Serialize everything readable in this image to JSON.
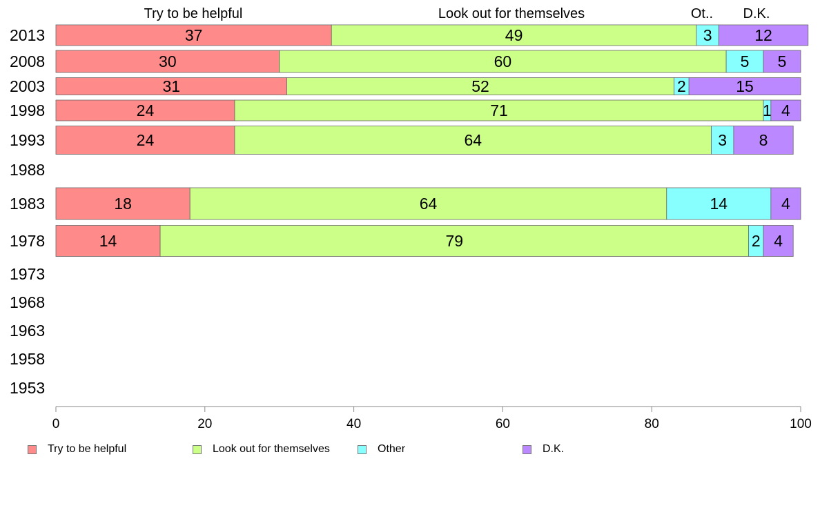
{
  "chart_data": {
    "type": "bar",
    "orientation": "horizontal",
    "stacked": true,
    "categories": [
      "2013",
      "2008",
      "2003",
      "1998",
      "1993",
      "1988",
      "1983",
      "1978",
      "1973",
      "1968",
      "1963",
      "1958",
      "1953"
    ],
    "series": [
      {
        "name": "Try to be helpful",
        "color": "#ff8a8a",
        "values": [
          37,
          30,
          31,
          24,
          24,
          null,
          18,
          14,
          null,
          null,
          null,
          null,
          null
        ]
      },
      {
        "name": "Look out for themselves",
        "color": "#ccff88",
        "values": [
          49,
          60,
          52,
          71,
          64,
          null,
          64,
          79,
          null,
          null,
          null,
          null,
          null
        ]
      },
      {
        "name": "Other",
        "color": "#88ffff",
        "values": [
          3,
          5,
          2,
          1,
          3,
          null,
          14,
          2,
          null,
          null,
          null,
          null,
          null
        ]
      },
      {
        "name": "D.K.",
        "color": "#bb88ff",
        "values": [
          12,
          5,
          15,
          4,
          8,
          null,
          4,
          4,
          null,
          null,
          null,
          null,
          null
        ]
      }
    ],
    "top_labels": [
      "Try to be helpful",
      "Look out for themselves",
      "Ot..",
      "D.K."
    ],
    "x_ticks": [
      "0",
      "20",
      "40",
      "60",
      "80",
      "100"
    ],
    "xlim": [
      0,
      100
    ],
    "grid": false,
    "legend_position": "bottom"
  }
}
